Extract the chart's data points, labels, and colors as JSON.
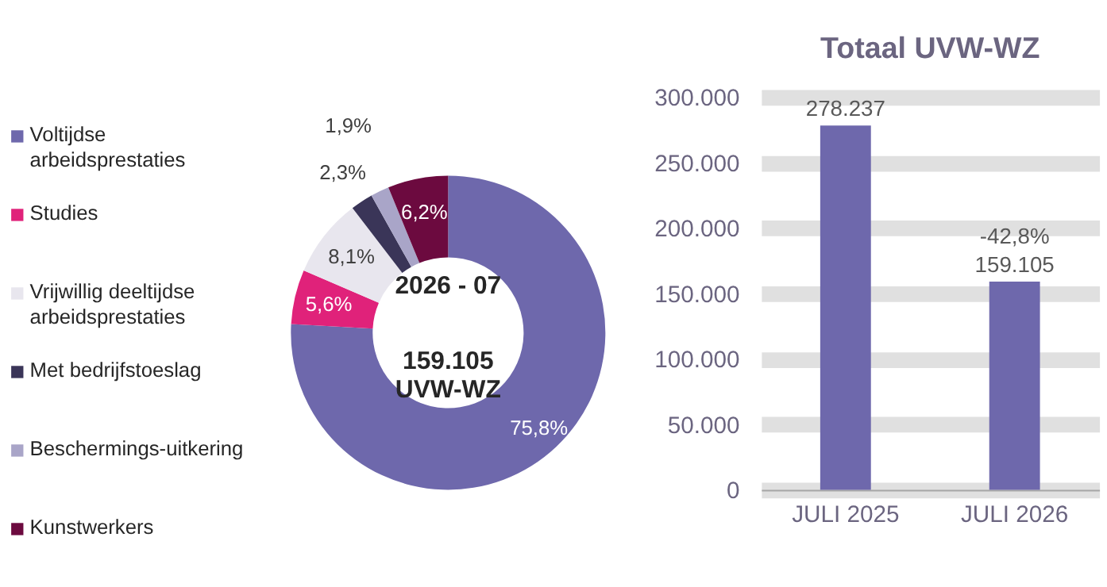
{
  "chart_data": [
    {
      "type": "donut",
      "categories": [
        "Voltijdse arbeidsprestaties",
        "Studies",
        "Vrijwillig deeltijdse arbeidsprestaties",
        "Met bedrijfstoeslag",
        "Beschermings-uitkering",
        "Kunstwerkers"
      ],
      "values": [
        75.8,
        5.6,
        8.1,
        2.3,
        1.9,
        6.2
      ],
      "colors": [
        "#6e68ac",
        "#e0227a",
        "#e8e6ee",
        "#3a3558",
        "#a9a5c8",
        "#6c0a3f"
      ],
      "value_labels": [
        "75,8%",
        "5,6%",
        "8,1%",
        "2,3%",
        "1,9%",
        "6,2%"
      ],
      "annotations": [
        "2026 - 07",
        "159.105\nUVW-WZ"
      ],
      "legend": "left"
    },
    {
      "type": "bar",
      "title": "Totaal UVW-WZ",
      "categories": [
        "JULI 2025",
        "JULI 2026"
      ],
      "values": [
        278237,
        159105
      ],
      "color": "#6e68ac",
      "value_labels": [
        "278.237",
        "159.105"
      ],
      "annotations": [
        {
          "text": "-42,8%",
          "x": "JULI 2026",
          "y": 159105
        }
      ],
      "ylim": [
        0,
        300000
      ],
      "yticks": [
        {
          "value": 0,
          "label": "0"
        },
        {
          "value": 50000,
          "label": "50.000"
        },
        {
          "value": 100000,
          "label": "100.000"
        },
        {
          "value": 150000,
          "label": "150.000"
        },
        {
          "value": 200000,
          "label": "200.000"
        },
        {
          "value": 250000,
          "label": "250.000"
        },
        {
          "value": 300000,
          "label": "300.000"
        }
      ],
      "grid": "y"
    }
  ]
}
